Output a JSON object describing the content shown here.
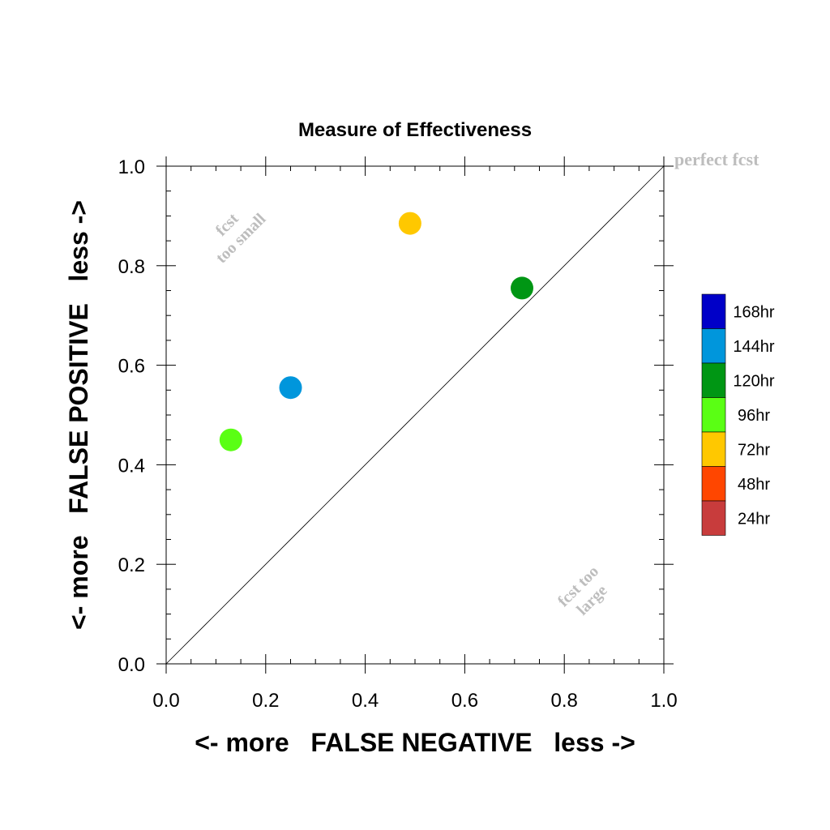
{
  "chart_data": {
    "type": "scatter",
    "title": "Measure of Effectiveness",
    "xlabel": "<- more   FALSE NEGATIVE   less ->",
    "ylabel": "<- more   FALSE POSITIVE   less ->",
    "xlim": [
      0.0,
      1.0
    ],
    "ylim": [
      0.0,
      1.0
    ],
    "x_ticks": [
      "0.0",
      "0.2",
      "0.4",
      "0.6",
      "0.8",
      "1.0"
    ],
    "y_ticks": [
      "0.0",
      "0.2",
      "0.4",
      "0.6",
      "0.8",
      "1.0"
    ],
    "grid": false,
    "reference_line": {
      "from": [
        0,
        0
      ],
      "to": [
        1,
        1
      ],
      "label": "perfect fcst"
    },
    "annotations": {
      "upper_left_line1": "fcst",
      "upper_left_line2": "too small",
      "lower_right_line1": "fcst too",
      "lower_right_line2": "large"
    },
    "legend_position": "right",
    "legend": [
      {
        "label": "168hr",
        "color": "#0000c8"
      },
      {
        "label": "144hr",
        "color": "#0096dc"
      },
      {
        "label": "120hr",
        "color": "#009614"
      },
      {
        "label": "96hr",
        "color": "#5aff14"
      },
      {
        "label": "72hr",
        "color": "#ffc800"
      },
      {
        "label": "48hr",
        "color": "#ff4600"
      },
      {
        "label": "24hr",
        "color": "#c83c3c"
      }
    ],
    "points": [
      {
        "x": 0.13,
        "y": 0.45,
        "series": "96hr",
        "color": "#5aff14"
      },
      {
        "x": 0.25,
        "y": 0.555,
        "series": "144hr",
        "color": "#0096dc"
      },
      {
        "x": 0.49,
        "y": 0.885,
        "series": "72hr",
        "color": "#ffc800"
      },
      {
        "x": 0.715,
        "y": 0.755,
        "series": "120hr",
        "color": "#009614"
      }
    ]
  }
}
